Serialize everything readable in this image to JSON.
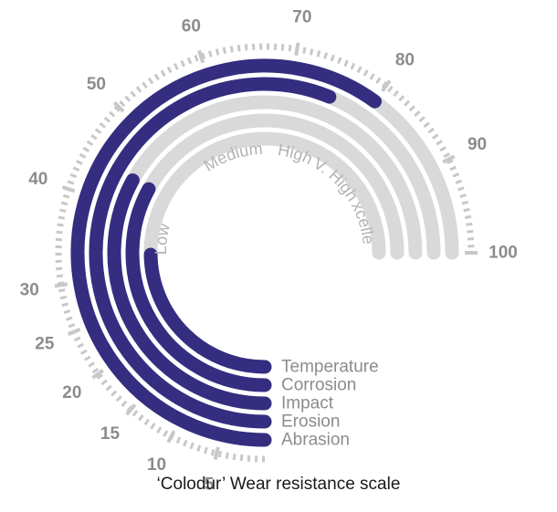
{
  "chart_data": {
    "type": "radial-bar",
    "title": "‘Colodur’ Wear resistance scale",
    "scale": {
      "min": 0,
      "max": 100,
      "tick_labels": [
        5,
        10,
        15,
        20,
        25,
        30,
        40,
        50,
        60,
        70,
        80,
        90,
        100
      ]
    },
    "bands": [
      "Low",
      "Medium",
      "High",
      "V. High",
      "Excellent"
    ],
    "series": [
      {
        "name": "Abrasion",
        "value": 80
      },
      {
        "name": "Erosion",
        "value": 75
      },
      {
        "name": "Impact",
        "value": 44
      },
      {
        "name": "Corrosion",
        "value": 44
      },
      {
        "name": "Temperature",
        "value": 33
      }
    ],
    "colors": {
      "bar": "#342d80",
      "track": "#d9d9d9",
      "ticks": "#c8c8c8",
      "text": "#8c8c8c"
    }
  }
}
